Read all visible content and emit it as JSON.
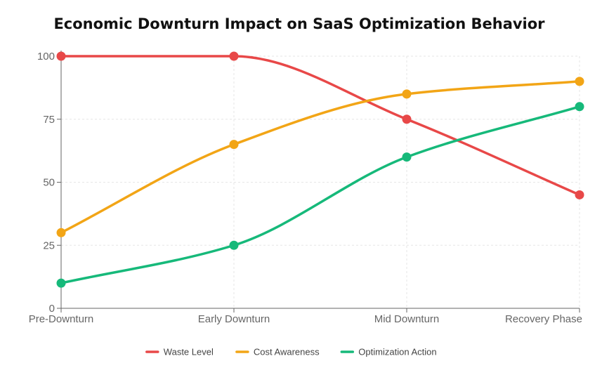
{
  "chart_data": {
    "type": "line",
    "title": "Economic Downturn Impact on SaaS Optimization Behavior",
    "xlabel": "",
    "ylabel": "",
    "categories": [
      "Pre-Downturn",
      "Early Downturn",
      "Mid Downturn",
      "Recovery Phase"
    ],
    "ylim": [
      0,
      100
    ],
    "yticks": [
      0,
      25,
      50,
      75,
      100
    ],
    "grid": true,
    "legend_position": "bottom",
    "series": [
      {
        "name": "Waste Level",
        "color": "#e84848",
        "values": [
          100,
          100,
          75,
          45
        ]
      },
      {
        "name": "Cost Awareness",
        "color": "#f2a516",
        "values": [
          30,
          65,
          85,
          90
        ]
      },
      {
        "name": "Optimization Action",
        "color": "#16b97a",
        "values": [
          10,
          25,
          60,
          80
        ]
      }
    ]
  }
}
